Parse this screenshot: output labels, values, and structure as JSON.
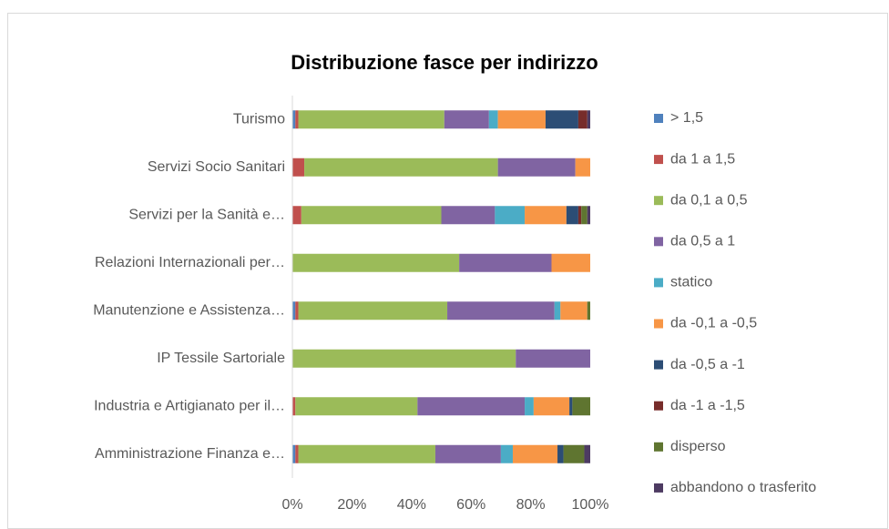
{
  "chart_data": {
    "type": "stacked_bar_horizontal",
    "title": "Distribuzione fasce per indirizzo",
    "categories": [
      "Turismo",
      "Servizi Socio Sanitari",
      "Servizi per la Sanità e…",
      "Relazioni Internazionali per…",
      "Manutenzione e Assistenza…",
      "IP Tessile Sartoriale",
      "Industria e Artigianato per il…",
      "Amministrazione Finanza e…"
    ],
    "series": [
      {
        "name": "> 1,5",
        "color": "#4f81bd",
        "values": [
          1,
          0,
          0,
          0,
          1,
          0,
          0,
          1
        ]
      },
      {
        "name": "da 1 a 1,5",
        "color": "#c0504d",
        "values": [
          1,
          4,
          3,
          0,
          1,
          0,
          1,
          1
        ]
      },
      {
        "name": "da 0,1 a 0,5",
        "color": "#9bbb59",
        "values": [
          49,
          65,
          47,
          56,
          50,
          75,
          41,
          46
        ]
      },
      {
        "name": "da 0,5 a 1",
        "color": "#8064a2",
        "values": [
          15,
          26,
          18,
          31,
          36,
          25,
          36,
          22
        ]
      },
      {
        "name": "statico",
        "color": "#4bacc6",
        "values": [
          3,
          0,
          10,
          0,
          2,
          0,
          3,
          4
        ]
      },
      {
        "name": "da -0,1 a -0,5",
        "color": "#f79646",
        "values": [
          16,
          5,
          14,
          13,
          9,
          0,
          12,
          15
        ]
      },
      {
        "name": "da -0,5 a -1",
        "color": "#2c4d75",
        "values": [
          11,
          0,
          4,
          0,
          0,
          0,
          1,
          2
        ]
      },
      {
        "name": "da -1 a -1,5",
        "color": "#772c2a",
        "values": [
          3,
          0,
          1,
          0,
          0,
          0,
          0,
          0
        ]
      },
      {
        "name": "disperso",
        "color": "#5f7530",
        "values": [
          0,
          0,
          2,
          0,
          1,
          0,
          6,
          7
        ]
      },
      {
        "name": "abbandono o trasferito",
        "color": "#4d3b62",
        "values": [
          1,
          0,
          1,
          0,
          0,
          0,
          0,
          2
        ]
      }
    ],
    "xlim": [
      0,
      100
    ],
    "xticks": [
      {
        "value": 0,
        "label": "0%"
      },
      {
        "value": 20,
        "label": "20%"
      },
      {
        "value": 40,
        "label": "40%"
      },
      {
        "value": 60,
        "label": "60%"
      },
      {
        "value": 80,
        "label": "80%"
      },
      {
        "value": 100,
        "label": "100%"
      }
    ],
    "legend": "right"
  }
}
